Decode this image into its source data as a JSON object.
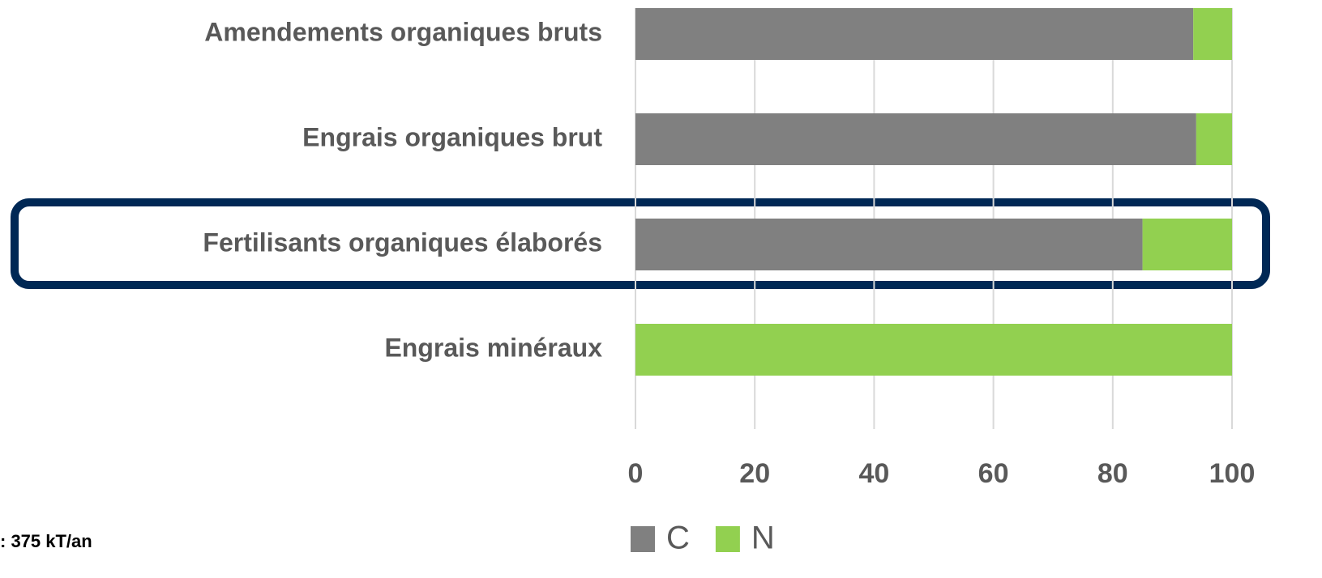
{
  "chart_data": {
    "type": "bar",
    "orientation": "horizontal",
    "stacked": true,
    "categories": [
      "Amendements organiques bruts",
      "Engrais organiques brut",
      "Fertilisants organiques élaborés",
      "Engrais minéraux"
    ],
    "series": [
      {
        "name": "C",
        "color": "#808080",
        "values": [
          93.5,
          94,
          85,
          0
        ]
      },
      {
        "name": "N",
        "color": "#92d050",
        "values": [
          6.5,
          6,
          15,
          100
        ]
      }
    ],
    "xlim": [
      0,
      100
    ],
    "xticks": [
      0,
      20,
      40,
      60,
      80,
      100
    ],
    "grid": true,
    "legend": "bottom",
    "annotation": ": 375 kT/an"
  }
}
